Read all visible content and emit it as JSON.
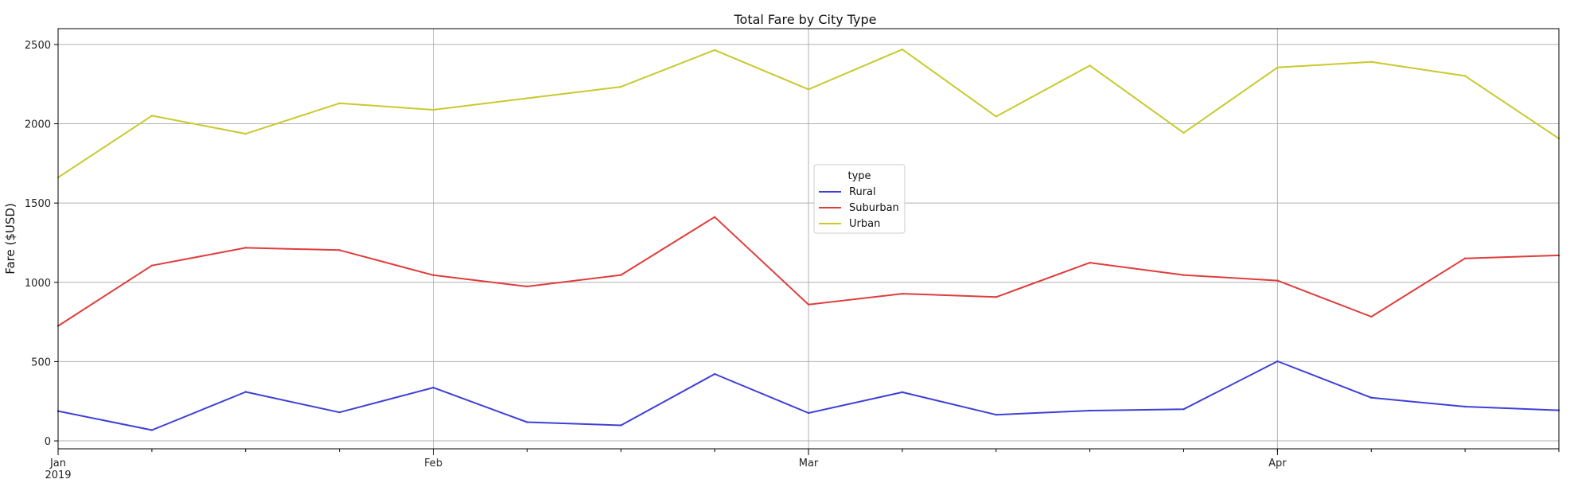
{
  "chart_data": {
    "type": "line",
    "title": "Total Fare by City Type",
    "xlabel": "",
    "ylabel": "Fare ($USD)",
    "x": [
      "2019-01-06",
      "2019-01-13",
      "2019-01-20",
      "2019-01-27",
      "2019-02-03",
      "2019-02-10",
      "2019-02-17",
      "2019-02-24",
      "2019-03-03",
      "2019-03-10",
      "2019-03-17",
      "2019-03-24",
      "2019-03-31",
      "2019-04-07",
      "2019-04-14",
      "2019-04-21",
      "2019-04-28"
    ],
    "xlim": [
      "2019-01-06",
      "2019-04-28"
    ],
    "ylim": [
      -50,
      2600
    ],
    "yticks": [
      0,
      500,
      1000,
      1500,
      2000,
      2500
    ],
    "xticks_major": [
      {
        "date": "2019-01-06",
        "label": "Jan",
        "sublabel": "2019"
      },
      {
        "date": "2019-02-03",
        "label": "Feb",
        "sublabel": ""
      },
      {
        "date": "2019-03-03",
        "label": "Mar",
        "sublabel": ""
      },
      {
        "date": "2019-04-07",
        "label": "Apr",
        "sublabel": ""
      }
    ],
    "grid": true,
    "legend": {
      "title": "type",
      "placement": "center"
    },
    "series": [
      {
        "name": "Rural",
        "color": "#3f3fd8",
        "values": [
          188,
          68,
          309,
          180,
          336,
          118,
          98,
          422,
          176,
          307,
          165,
          191,
          200,
          502,
          272,
          216,
          193
        ]
      },
      {
        "name": "Suburban",
        "color": "#e03c3c",
        "values": [
          725,
          1106,
          1218,
          1203,
          1045,
          974,
          1046,
          1412,
          860,
          928,
          907,
          1124,
          1046,
          1011,
          783,
          1151,
          1170
        ]
      },
      {
        "name": "Urban",
        "color": "#c9c92e",
        "values": [
          1661,
          2051,
          1937,
          2129,
          2088,
          2161,
          2233,
          2465,
          2217,
          2469,
          2046,
          2367,
          1943,
          2355,
          2390,
          2302,
          1907
        ]
      }
    ]
  }
}
